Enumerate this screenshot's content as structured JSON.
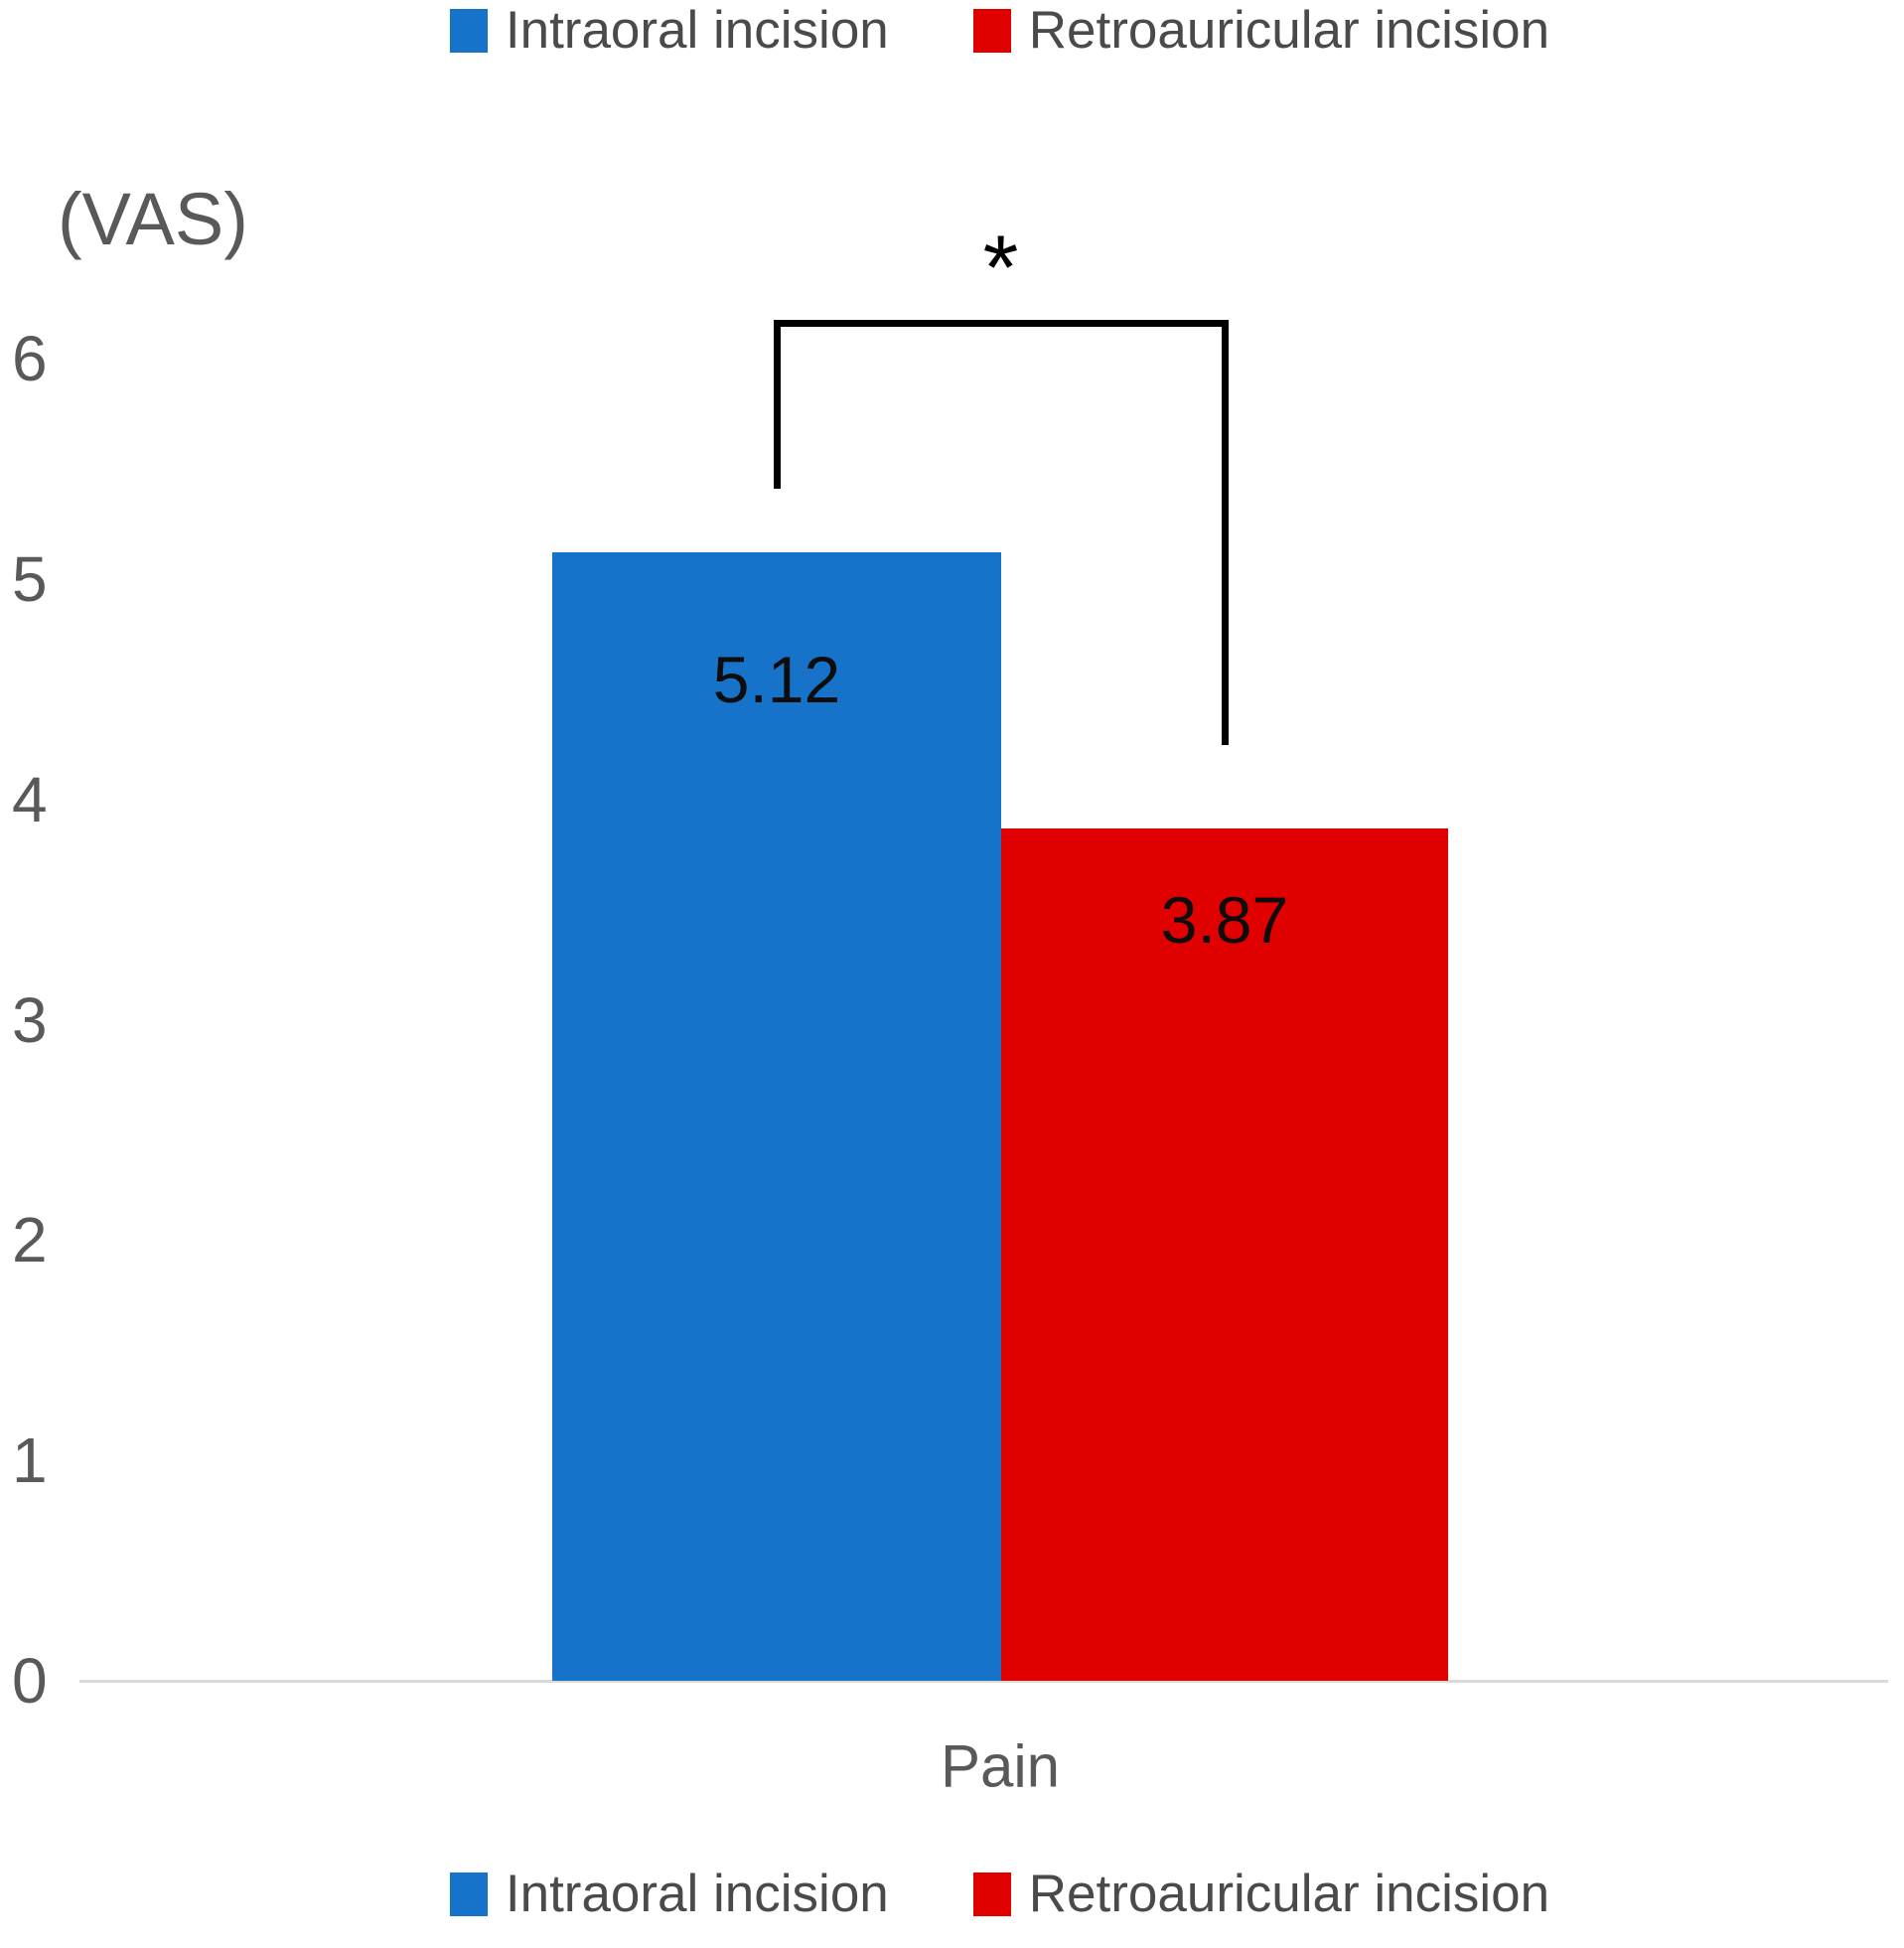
{
  "chart_data": {
    "type": "bar",
    "title": "",
    "ylabel": "(VAS)",
    "categories": [
      "Pain"
    ],
    "series": [
      {
        "name": "Intraoral incision",
        "color": "#1673C9",
        "values": [
          5.12
        ]
      },
      {
        "name": "Retroauricular incision",
        "color": "#E00000",
        "values": [
          3.87
        ]
      }
    ],
    "ylim": [
      0,
      6
    ],
    "yticks": [
      6,
      5,
      4,
      3,
      2,
      1,
      0
    ],
    "grid": false,
    "legend_positions": [
      "top",
      "bottom"
    ],
    "significance": {
      "marker": "*",
      "between": [
        "Intraoral incision",
        "Retroauricular incision"
      ]
    }
  }
}
